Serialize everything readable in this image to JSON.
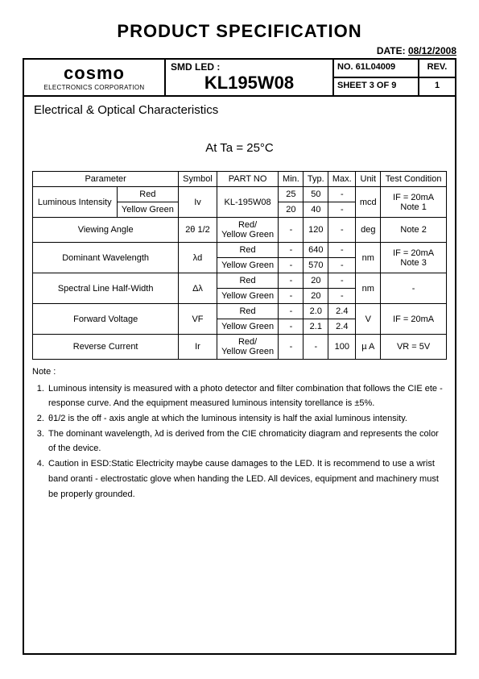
{
  "title": "PRODUCT   SPECIFICATION",
  "date_label": "DATE:",
  "date_value": "08/12/2008",
  "brand": {
    "name": "cosmo",
    "sub": "ELECTRONICS CORPORATION"
  },
  "mid": {
    "label": "SMD LED :",
    "part": "KL195W08"
  },
  "right": {
    "no_label": "NO. 61L04009",
    "rev_label": "REV.",
    "sheet_label": "SHEET 3 OF 9",
    "rev_value": "1"
  },
  "section_title": "Electrical & Optical Characteristics",
  "condition": "At Ta = 25°C",
  "table": {
    "head": [
      "Parameter",
      "Symbol",
      "PART NO",
      "Min.",
      "Typ.",
      "Max.",
      "Unit",
      "Test Condition"
    ],
    "rows": {
      "lum_lbl": "Luminous Intensity",
      "lum_red": "Red",
      "lum_yg": "Yellow Green",
      "lum_sym": "Iv",
      "lum_pn": "KL-195W08",
      "lum_r_min": "25",
      "lum_r_typ": "50",
      "lum_r_max": "-",
      "lum_y_min": "20",
      "lum_y_typ": "40",
      "lum_y_max": "-",
      "lum_unit": "mcd",
      "lum_tc": "IF = 20mA\nNote 1",
      "va_lbl": "Viewing Angle",
      "va_sym": "2θ  1/2",
      "va_pn": "Red/\nYellow Green",
      "va_min": "-",
      "va_typ": "120",
      "va_max": "-",
      "va_unit": "deg",
      "va_tc": "Note 2",
      "dw_lbl": "Dominant Wavelength",
      "dw_sym": "λd",
      "dw_r_pn": "Red",
      "dw_r_min": "-",
      "dw_r_typ": "640",
      "dw_r_max": "-",
      "dw_y_pn": "Yellow Green",
      "dw_y_min": "-",
      "dw_y_typ": "570",
      "dw_y_max": "-",
      "dw_unit": "nm",
      "dw_tc": "IF = 20mA\nNote 3",
      "sl_lbl": "Spectral Line Half-Width",
      "sl_sym": "Δλ",
      "sl_r_pn": "Red",
      "sl_r_min": "-",
      "sl_r_typ": "20",
      "sl_r_max": "-",
      "sl_y_pn": "Yellow Green",
      "sl_y_min": "-",
      "sl_y_typ": "20",
      "sl_y_max": "-",
      "sl_unit": "nm",
      "sl_tc": "-",
      "fv_lbl": "Forward Voltage",
      "fv_sym": "VF",
      "fv_r_pn": "Red",
      "fv_r_min": "-",
      "fv_r_typ": "2.0",
      "fv_r_max": "2.4",
      "fv_y_pn": "Yellow Green",
      "fv_y_min": "-",
      "fv_y_typ": "2.1",
      "fv_y_max": "2.4",
      "fv_unit": "V",
      "fv_tc": "IF = 20mA",
      "rc_lbl": "Reverse Current",
      "rc_sym": "Ir",
      "rc_pn": "Red/\nYellow Green",
      "rc_min": "-",
      "rc_typ": "-",
      "rc_max": "100",
      "rc_unit": "µ A",
      "rc_tc": "VR = 5V"
    }
  },
  "notes_label": "Note :",
  "notes": [
    "Luminous intensity is measured with a photo detector and filter combination that follows the CIE ete - response curve. And the equipment measured luminous intensity torellance is ±5%.",
    "θ1/2 is the off - axis angle at which the luminous intensity is half the axial luminous intensity.",
    "The dominant wavelength, λd is derived from the CIE chromaticity diagram and represents the color of the device.",
    "Caution in ESD:Static Electricity maybe cause damages to the LED. It is recommend to use a wrist band oranti - electrostatic glove when handing the LED. All devices, equipment and machinery must be properly grounded."
  ]
}
